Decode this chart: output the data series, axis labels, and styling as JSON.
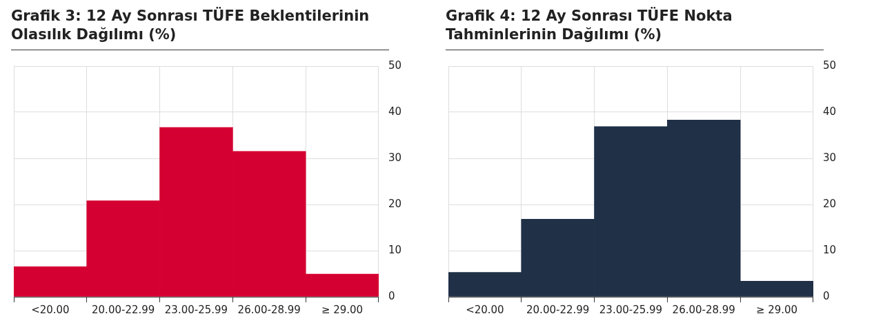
{
  "chart_data": [
    {
      "type": "bar",
      "title": "Grafik 3: 12 Ay Sonrası TÜFE Beklentilerinin Olasılık Dağılımı (%)",
      "categories": [
        "<20.00",
        "20.00-22.99",
        "23.00-25.99",
        "26.00-28.99",
        "≥ 29.00"
      ],
      "values": [
        6.5,
        20.8,
        36.7,
        31.5,
        4.9
      ],
      "color": "#d50032",
      "ylim": [
        0,
        50
      ],
      "yticks": [
        0,
        10,
        20,
        30,
        40,
        50
      ],
      "grid": true
    },
    {
      "type": "bar",
      "title": "Grafik 4: 12 Ay Sonrası TÜFE Nokta Tahminlerinin Dağılımı (%)",
      "categories": [
        "<20.00",
        "20.00-22.99",
        "23.00-25.99",
        "26.00-28.99",
        "≥ 29.00"
      ],
      "values": [
        5.3,
        16.8,
        36.9,
        38.3,
        3.4
      ],
      "color": "#1f3047",
      "ylim": [
        0,
        50
      ],
      "yticks": [
        0,
        10,
        20,
        30,
        40,
        50
      ],
      "grid": true
    }
  ]
}
